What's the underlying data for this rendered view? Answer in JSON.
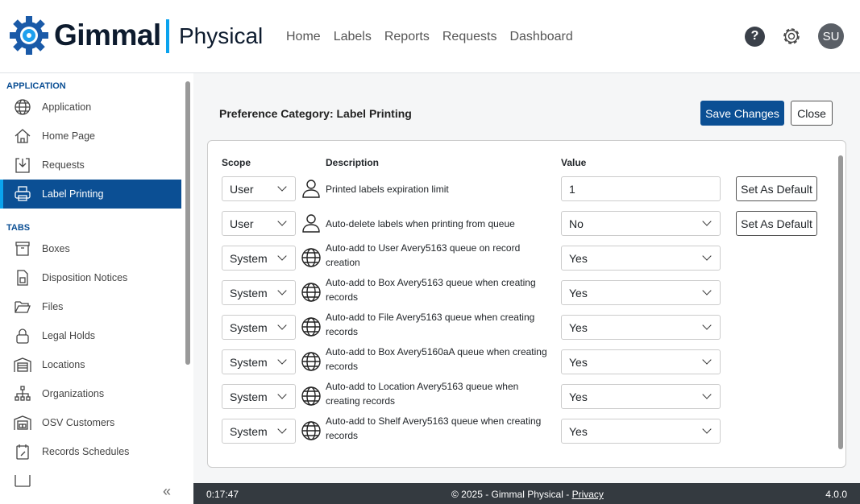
{
  "header": {
    "brand": "Gimmal",
    "product": "Physical",
    "nav": [
      "Home",
      "Labels",
      "Reports",
      "Requests",
      "Dashboard"
    ],
    "help": "?",
    "avatar": "SU"
  },
  "sidebar": {
    "sections": [
      {
        "title": "APPLICATION",
        "items": [
          {
            "label": "Application",
            "icon": "globe-icon"
          },
          {
            "label": "Home Page",
            "icon": "home-icon"
          },
          {
            "label": "Requests",
            "icon": "download-icon"
          },
          {
            "label": "Label Printing",
            "icon": "printer-icon",
            "active": true
          }
        ]
      },
      {
        "title": "TABS",
        "items": [
          {
            "label": "Boxes",
            "icon": "box-icon"
          },
          {
            "label": "Disposition Notices",
            "icon": "document-icon"
          },
          {
            "label": "Files",
            "icon": "folder-icon"
          },
          {
            "label": "Legal Holds",
            "icon": "lock-icon"
          },
          {
            "label": "Locations",
            "icon": "warehouse-icon"
          },
          {
            "label": "Organizations",
            "icon": "org-chart-icon"
          },
          {
            "label": "OSV Customers",
            "icon": "building-icon"
          },
          {
            "label": "Records Schedules",
            "icon": "calendar-icon"
          }
        ]
      }
    ],
    "collapse": "«"
  },
  "main": {
    "title": "Preference Category: Label Printing",
    "save": "Save Changes",
    "close": "Close",
    "columns": {
      "scope": "Scope",
      "description": "Description",
      "value": "Value"
    },
    "set_default": "Set As Default",
    "rows": [
      {
        "scope": "User",
        "description": "Printed labels expiration limit",
        "value": "1",
        "input": true,
        "default": true
      },
      {
        "scope": "User",
        "description": "Auto-delete labels when printing from queue",
        "value": "No",
        "default": true
      },
      {
        "scope": "System",
        "description": "Auto-add to User Avery5163 queue on record creation",
        "value": "Yes"
      },
      {
        "scope": "System",
        "description": "Auto-add to Box Avery5163 queue when creating records",
        "value": "Yes"
      },
      {
        "scope": "System",
        "description": "Auto-add to File Avery5163 queue when creating records",
        "value": "Yes"
      },
      {
        "scope": "System",
        "description": "Auto-add to Box Avery5160aA queue when creating records",
        "value": "Yes"
      },
      {
        "scope": "System",
        "description": "Auto-add to Location Avery5163 queue when creating records",
        "value": "Yes"
      },
      {
        "scope": "System",
        "description": "Auto-add to Shelf Avery5163 queue when creating records",
        "value": "Yes"
      }
    ]
  },
  "footer": {
    "time": "0:17:47",
    "copyright": "© 2025 - Gimmal Physical - ",
    "privacy": "Privacy",
    "version": "4.0.0"
  }
}
